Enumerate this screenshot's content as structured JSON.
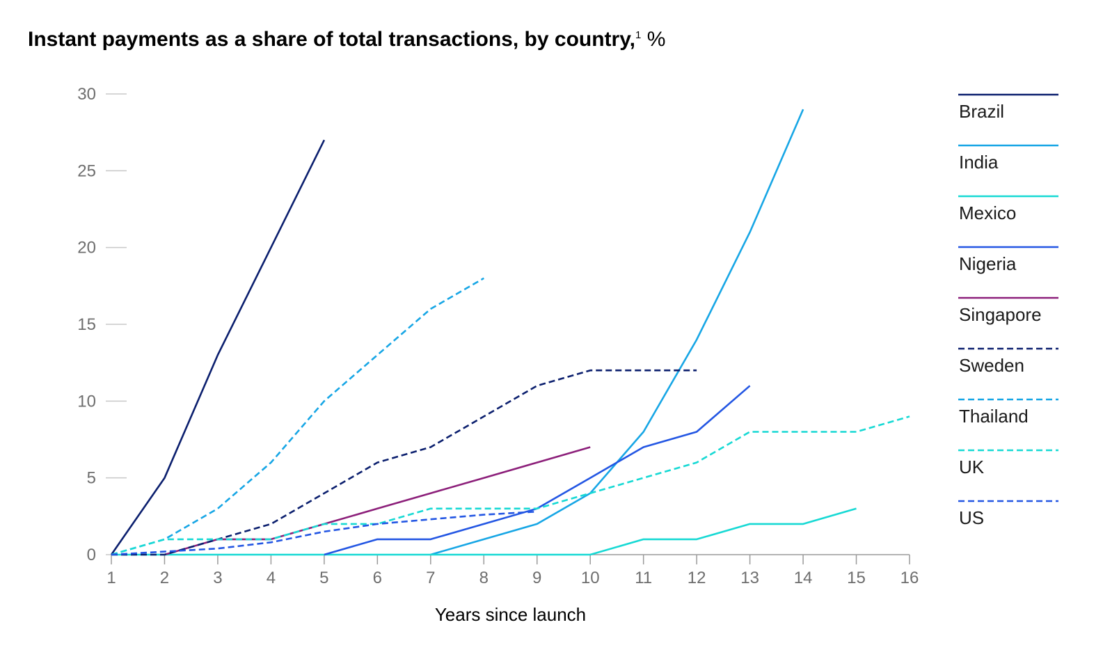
{
  "title": {
    "text": "Instant payments as a share of total transactions, by country,",
    "footnote": "1",
    "unit": "%"
  },
  "chart_data": {
    "type": "line",
    "title": "Instant payments as a share of total transactions, by country,",
    "xlabel": "Years since launch",
    "ylabel": "",
    "x_ticks": [
      1,
      2,
      3,
      4,
      5,
      6,
      7,
      8,
      9,
      10,
      11,
      12,
      13,
      14,
      15,
      16
    ],
    "y_ticks": [
      0,
      5,
      10,
      15,
      20,
      25,
      30
    ],
    "xlim": [
      1,
      16
    ],
    "ylim": [
      0,
      30
    ],
    "grid": false,
    "legend_position": "right",
    "series": [
      {
        "name": "Brazil",
        "color": "#0b1f6e",
        "dash": false,
        "x": [
          1,
          2,
          3,
          4,
          5
        ],
        "y": [
          0,
          5,
          13,
          20,
          27
        ]
      },
      {
        "name": "India",
        "color": "#17a6e5",
        "dash": false,
        "x": [
          7,
          8,
          9,
          10,
          11,
          12,
          13,
          14
        ],
        "y": [
          0,
          1,
          2,
          4,
          8,
          14,
          21,
          29
        ]
      },
      {
        "name": "Mexico",
        "color": "#17d9d4",
        "dash": false,
        "x": [
          1,
          2,
          3,
          4,
          5,
          6,
          7,
          8,
          9,
          10,
          11,
          12,
          13,
          14,
          15
        ],
        "y": [
          0,
          0,
          0,
          0,
          0,
          0,
          0,
          0,
          0,
          0,
          1,
          1,
          2,
          2,
          3
        ]
      },
      {
        "name": "Nigeria",
        "color": "#2356e3",
        "dash": false,
        "x": [
          5,
          6,
          7,
          8,
          9,
          10,
          11,
          12,
          13
        ],
        "y": [
          0,
          1,
          1,
          2,
          3,
          5,
          7,
          8,
          11
        ]
      },
      {
        "name": "Singapore",
        "color": "#8c1f7a",
        "dash": false,
        "x": [
          2,
          3,
          4,
          5,
          6,
          7,
          8,
          9,
          10
        ],
        "y": [
          0,
          1,
          1,
          2,
          3,
          4,
          5,
          6,
          7
        ]
      },
      {
        "name": "Sweden",
        "color": "#0b1f6e",
        "dash": true,
        "x": [
          1,
          2,
          3,
          4,
          5,
          6,
          7,
          8,
          9,
          10,
          11,
          12
        ],
        "y": [
          0,
          0,
          1,
          2,
          4,
          6,
          7,
          9,
          11,
          12,
          12,
          12
        ]
      },
      {
        "name": "Thailand",
        "color": "#17a6e5",
        "dash": true,
        "x": [
          1,
          2,
          3,
          4,
          5,
          6,
          7,
          8
        ],
        "y": [
          0,
          1,
          3,
          6,
          10,
          13,
          16,
          18
        ]
      },
      {
        "name": "UK",
        "color": "#17d9d4",
        "dash": true,
        "x": [
          1,
          2,
          3,
          4,
          5,
          6,
          7,
          8,
          9,
          10,
          11,
          12,
          13,
          14,
          15,
          16
        ],
        "y": [
          0,
          1,
          1,
          1,
          2,
          2,
          3,
          3,
          3,
          4,
          5,
          6,
          8,
          8,
          8,
          9
        ]
      },
      {
        "name": "US",
        "color": "#2356e3",
        "dash": true,
        "x": [
          1,
          2,
          3,
          4,
          5,
          6,
          7,
          8,
          9
        ],
        "y": [
          0,
          0.2,
          0.4,
          0.8,
          1.5,
          2,
          2.3,
          2.6,
          2.8
        ]
      }
    ]
  }
}
